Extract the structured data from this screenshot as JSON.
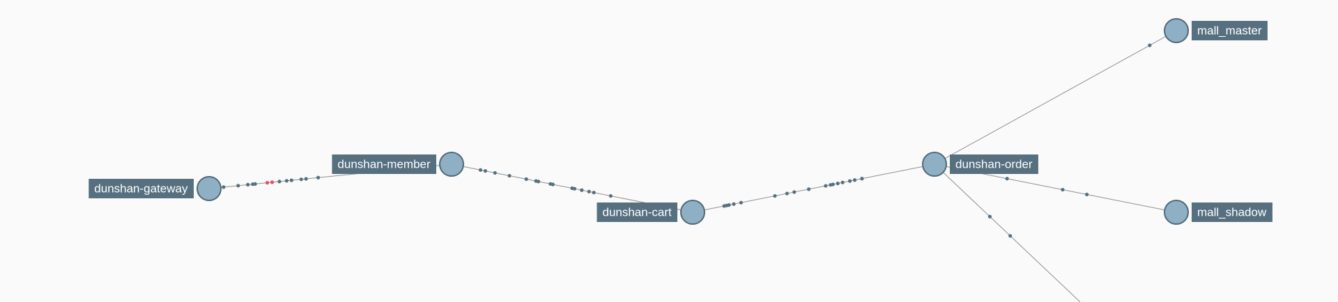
{
  "topology": {
    "nodes": [
      {
        "id": "dunshan-gateway",
        "label": "dunshan-gateway"
      },
      {
        "id": "dunshan-member",
        "label": "dunshan-member"
      },
      {
        "id": "dunshan-cart",
        "label": "dunshan-cart"
      },
      {
        "id": "dunshan-order",
        "label": "dunshan-order"
      },
      {
        "id": "mall_master",
        "label": "mall_master"
      },
      {
        "id": "mall_shadow",
        "label": "mall_shadow"
      }
    ],
    "edges": [
      {
        "from": "dunshan-gateway",
        "to": "dunshan-member"
      },
      {
        "from": "dunshan-member",
        "to": "dunshan-cart"
      },
      {
        "from": "dunshan-cart",
        "to": "dunshan-order"
      },
      {
        "from": "dunshan-order",
        "to": "mall_master"
      },
      {
        "from": "dunshan-order",
        "to": "mall_shadow"
      },
      {
        "from": "dunshan-order",
        "to": ""
      }
    ],
    "colors": {
      "background": "#fafafa",
      "node_fill": "#8fb0c4",
      "node_stroke": "#4f6878",
      "label_bg": "#56707f",
      "label_text": "#ffffff",
      "edge": "#8e8e8e",
      "traffic_dot": "#56707f",
      "error_dot": "#e0506a"
    }
  }
}
